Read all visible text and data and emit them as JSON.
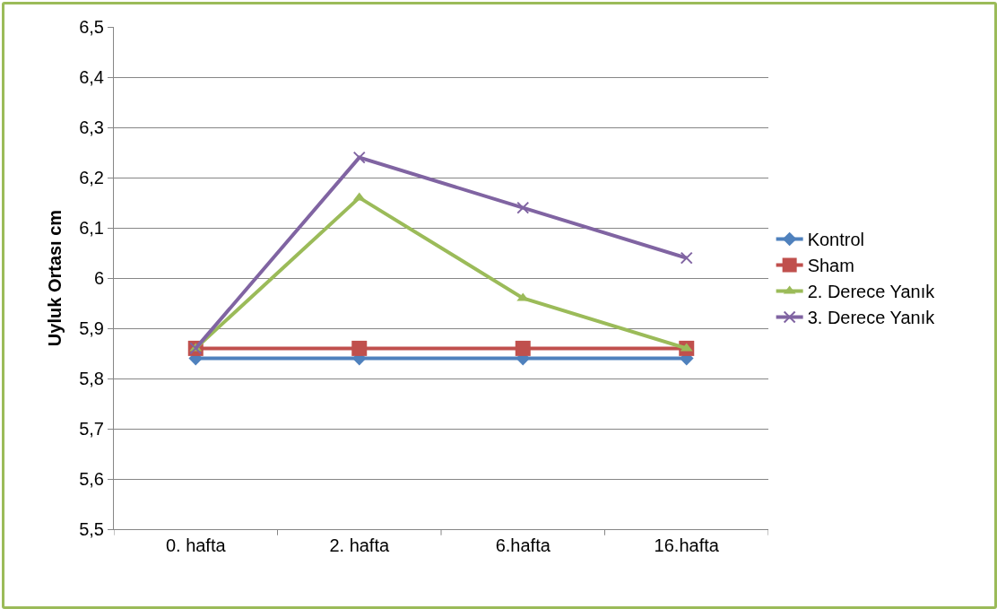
{
  "chart_data": {
    "type": "line",
    "ylabel": "Uyluk Ortası cm",
    "categories": [
      "0. hafta",
      "2. hafta",
      "6.hafta",
      "16.hafta"
    ],
    "series": [
      {
        "name": "Kontrol",
        "color": "#4f81bd",
        "marker": "diamond",
        "values": [
          5.84,
          5.84,
          5.84,
          5.84
        ]
      },
      {
        "name": "Sham",
        "color": "#c0504d",
        "marker": "square",
        "values": [
          5.86,
          5.86,
          5.86,
          5.86
        ]
      },
      {
        "name": "2. Derece Yanık",
        "color": "#9bbb59",
        "marker": "triangle",
        "values": [
          5.86,
          6.16,
          5.96,
          5.86
        ]
      },
      {
        "name": "3. Derece Yanık",
        "color": "#8064a2",
        "marker": "cross",
        "values": [
          5.86,
          6.24,
          6.14,
          6.04
        ]
      }
    ],
    "ylim": [
      5.5,
      6.5
    ],
    "yticks": [
      {
        "value": 5.5,
        "label": "5,5"
      },
      {
        "value": 5.6,
        "label": "5,6"
      },
      {
        "value": 5.7,
        "label": "5,7"
      },
      {
        "value": 5.8,
        "label": "5,8"
      },
      {
        "value": 5.9,
        "label": "5,9"
      },
      {
        "value": 6,
        "label": "6"
      },
      {
        "value": 6.1,
        "label": "6,1"
      },
      {
        "value": 6.2,
        "label": "6,2"
      },
      {
        "value": 6.3,
        "label": "6,3"
      },
      {
        "value": 6.4,
        "label": "6,4"
      },
      {
        "value": 6.5,
        "label": "6,5"
      }
    ],
    "grid": "y",
    "legend": "right",
    "line_style": "solid"
  }
}
